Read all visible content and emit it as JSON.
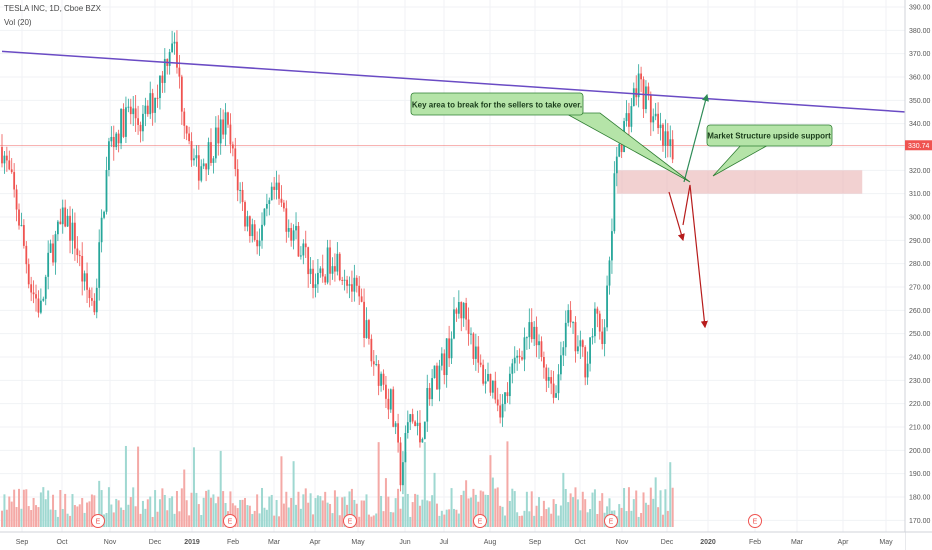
{
  "header": {
    "title": "TESLA INC, 1D, Cboe BZX",
    "indicator": "Vol (20)"
  },
  "colors": {
    "up": "#26a69a",
    "down": "#ef5350",
    "trendline": "#6a4bc4",
    "zone_fill": "#e9b3b3",
    "price_line": "#ef5350",
    "arrow_green": "#2e8b57",
    "arrow_red": "#b71c1c",
    "callout_fill": "#b5e4a8",
    "callout_border": "#2e7d32"
  },
  "chart_data": {
    "type": "candlestick",
    "symbol": "TESLA INC",
    "interval": "1D",
    "exchange": "Cboe BZX",
    "ylim": [
      165,
      393
    ],
    "y_ticks": [
      170,
      180,
      190,
      200,
      210,
      220,
      230,
      240,
      250,
      260,
      270,
      280,
      290,
      300,
      310,
      320,
      330,
      340,
      350,
      360,
      370,
      380,
      390
    ],
    "x_labels": [
      "Sep",
      "Oct",
      "Nov",
      "Dec",
      "2019",
      "Feb",
      "Mar",
      "Apr",
      "May",
      "Jun",
      "Jul",
      "Aug",
      "Sep",
      "Oct",
      "Nov",
      "Dec",
      "2020",
      "Feb",
      "Mar",
      "Apr",
      "May"
    ],
    "x_label_bold": "2019",
    "x_labels_bold2": "2020",
    "last_price_label": "330.74",
    "last_price": 330.74,
    "price_path": [
      [
        0,
        330
      ],
      [
        6,
        305
      ],
      [
        12,
        270
      ],
      [
        16,
        260
      ],
      [
        20,
        285
      ],
      [
        26,
        300
      ],
      [
        30,
        290
      ],
      [
        34,
        270
      ],
      [
        38,
        262
      ],
      [
        44,
        330
      ],
      [
        52,
        345
      ],
      [
        58,
        340
      ],
      [
        64,
        355
      ],
      [
        70,
        378
      ],
      [
        74,
        350
      ],
      [
        80,
        320
      ],
      [
        86,
        330
      ],
      [
        92,
        340
      ],
      [
        100,
        300
      ],
      [
        106,
        290
      ],
      [
        112,
        310
      ],
      [
        118,
        298
      ],
      [
        124,
        285
      ],
      [
        130,
        270
      ],
      [
        136,
        285
      ],
      [
        142,
        275
      ],
      [
        148,
        260
      ],
      [
        152,
        240
      ],
      [
        156,
        232
      ],
      [
        160,
        220
      ],
      [
        164,
        190
      ],
      [
        168,
        215
      ],
      [
        172,
        205
      ],
      [
        176,
        228
      ],
      [
        182,
        238
      ],
      [
        188,
        262
      ],
      [
        192,
        255
      ],
      [
        196,
        235
      ],
      [
        202,
        228
      ],
      [
        206,
        218
      ],
      [
        212,
        240
      ],
      [
        216,
        250
      ],
      [
        220,
        245
      ],
      [
        224,
        235
      ],
      [
        228,
        225
      ],
      [
        232,
        258
      ],
      [
        236,
        245
      ],
      [
        240,
        238
      ],
      [
        244,
        255
      ],
      [
        248,
        250
      ],
      [
        253,
        328
      ],
      [
        258,
        345
      ],
      [
        262,
        358
      ],
      [
        266,
        348
      ],
      [
        270,
        335
      ],
      [
        276,
        325
      ]
    ],
    "earnings_markers": [
      "E",
      "E",
      "E",
      "E",
      "E",
      "E",
      "E"
    ],
    "trendline": [
      [
        0,
        371
      ],
      [
        372,
        345
      ]
    ],
    "zone": {
      "from_day": 253,
      "to_day": 354,
      "low": 310,
      "high": 320
    },
    "annotations": [
      "Key area to break for the sellers to take over.",
      "Market Structure upside support"
    ]
  }
}
